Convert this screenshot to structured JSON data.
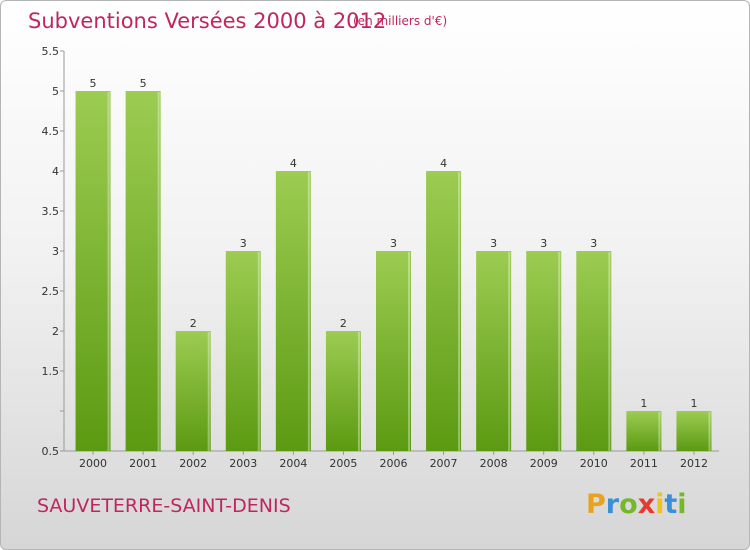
{
  "header": {
    "title": "Subventions Versées 2000 à 2012",
    "unit": "(en milliers d'€)"
  },
  "footer": {
    "commune": "SAUVETERRE-SAINT-DENIS",
    "logo_letters": [
      "P",
      "r",
      "o",
      "x",
      "i",
      "t",
      "i"
    ],
    "logo_colors": [
      "#e8a21e",
      "#3b8fd6",
      "#76b82a",
      "#e53a2f",
      "#f1c21b",
      "#3b8fd6",
      "#76b82a"
    ]
  },
  "chart_data": {
    "type": "bar",
    "categories": [
      "2000",
      "2001",
      "2002",
      "2003",
      "2004",
      "2005",
      "2006",
      "2007",
      "2008",
      "2009",
      "2010",
      "2011",
      "2012"
    ],
    "values": [
      5,
      5,
      2,
      3,
      4,
      2,
      3,
      4,
      3,
      3,
      3,
      1,
      1
    ],
    "data_labels": [
      "5",
      "5",
      "2",
      "3",
      "4",
      "2",
      "3",
      "4",
      "3",
      "3",
      "3",
      "1",
      "1"
    ],
    "y_ticks": [
      0.5,
      1,
      1.5,
      2,
      2.5,
      3,
      3.5,
      4,
      4.5,
      5,
      5.5
    ],
    "y_tick_labels": [
      "0.5",
      "",
      "1.5",
      "2",
      "2.5",
      "3",
      "3.5",
      "4",
      "4.5",
      "5",
      "5.5"
    ],
    "ylim": [
      0.5,
      5.5
    ],
    "bar_color_top": "#9ccc52",
    "bar_color_bottom": "#5c9a12",
    "grid": false,
    "title": "Subventions Versées 2000 à 2012",
    "xlabel": "",
    "ylabel": ""
  }
}
